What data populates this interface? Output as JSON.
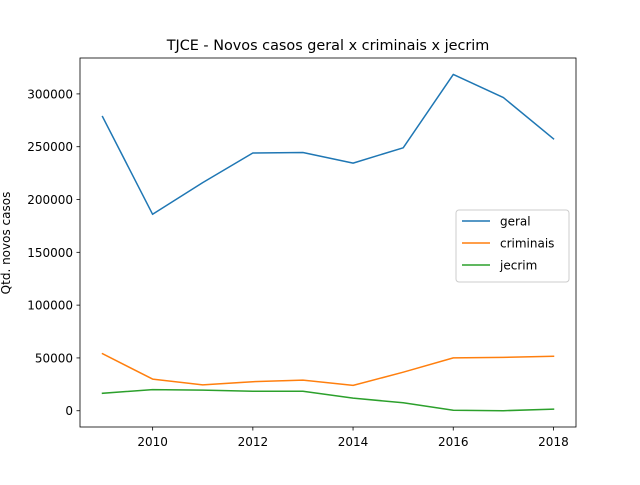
{
  "chart_data": {
    "type": "line",
    "title": "TJCE - Novos casos geral x criminais x jecrim",
    "xlabel": "",
    "ylabel": "Qtd. novos casos",
    "x": [
      2009,
      2010,
      2011,
      2012,
      2013,
      2014,
      2015,
      2016,
      2017,
      2018
    ],
    "xlim": [
      2008.55,
      2018.45
    ],
    "ylim": [
      -15400,
      334000
    ],
    "xticks": [
      2010,
      2012,
      2014,
      2016,
      2018
    ],
    "yticks": [
      0,
      50000,
      100000,
      150000,
      200000,
      250000,
      300000
    ],
    "grid": false,
    "legend_position": "center-right",
    "series": [
      {
        "name": "geral",
        "color": "#1f77b4",
        "values": [
          278500,
          186000,
          216000,
          244000,
          244500,
          234500,
          249000,
          318500,
          296500,
          257500
        ]
      },
      {
        "name": "criminais",
        "color": "#ff7f0e",
        "values": [
          54000,
          30000,
          24500,
          27500,
          29000,
          24000,
          36500,
          50000,
          50500,
          51500
        ]
      },
      {
        "name": "jecrim",
        "color": "#2ca02c",
        "values": [
          16500,
          20000,
          19500,
          18500,
          18500,
          12000,
          7500,
          500,
          0,
          1500
        ]
      }
    ]
  }
}
